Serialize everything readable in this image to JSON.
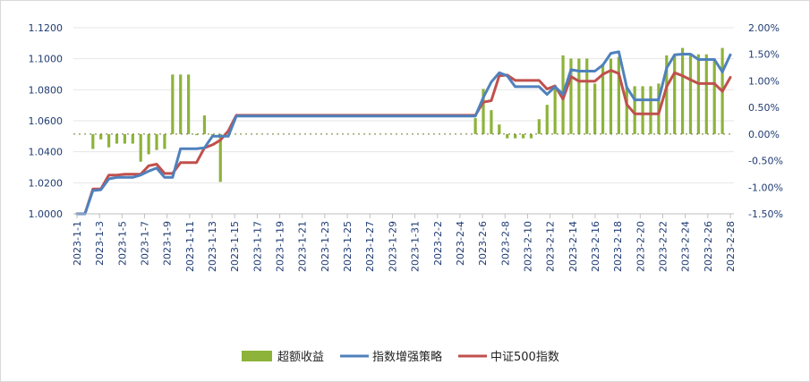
{
  "chart_data": {
    "type": "line",
    "colors": {
      "bar": "#8db33a",
      "strategy": "#4f81bd",
      "index": "#c0504d",
      "axis_text": "#1f3b73"
    },
    "y_left": {
      "min": 1.0,
      "max": 1.12,
      "ticks": [
        "1.0000",
        "1.0200",
        "1.0400",
        "1.0600",
        "1.0800",
        "1.1000",
        "1.1200"
      ]
    },
    "y_right": {
      "min": -1.5,
      "max": 2.0,
      "ticks": [
        "-1.50%",
        "-1.00%",
        "-0.50%",
        "0.00%",
        "0.50%",
        "1.00%",
        "1.50%",
        "2.00%"
      ]
    },
    "x_labels": [
      "2023-1-1",
      "2023-1-3",
      "2023-1-5",
      "2023-1-7",
      "2023-1-9",
      "2023-1-11",
      "2023-1-13",
      "2023-1-15",
      "2023-1-17",
      "2023-1-19",
      "2023-1-21",
      "2023-1-23",
      "2023-1-25",
      "2023-1-27",
      "2023-1-29",
      "2023-1-31",
      "2023-2-2",
      "2023-2-4",
      "2023-2-6",
      "2023-2-8",
      "2023-2-10",
      "2023-2-12",
      "2023-2-14",
      "2023-2-16",
      "2023-2-18",
      "2023-2-20",
      "2023-2-22",
      "2023-2-24",
      "2023-2-26",
      "2023-2-28"
    ],
    "legend": [
      "超额收益",
      "指数增强策略",
      "中证500指数"
    ],
    "series": [
      {
        "name": "超额收益",
        "kind": "bar",
        "axis": "right",
        "values": [
          0,
          0,
          -0.28,
          -0.1,
          -0.25,
          -0.18,
          -0.18,
          -0.18,
          -0.52,
          -0.38,
          -0.3,
          -0.28,
          1.12,
          1.12,
          1.12,
          -0.02,
          0.35,
          -0.02,
          -0.9,
          0,
          0,
          0,
          0,
          0,
          0,
          0,
          0,
          0,
          0,
          0,
          0,
          0,
          0,
          0,
          0,
          0,
          0,
          0,
          0,
          0,
          0,
          0,
          0,
          0,
          0,
          0,
          0,
          0,
          0,
          0,
          0.3,
          0.85,
          0.45,
          0.18,
          -0.08,
          -0.08,
          -0.08,
          -0.08,
          0.28,
          0.55,
          0.88,
          1.48,
          1.42,
          1.42,
          1.42,
          0.95,
          1.32,
          1.42,
          1.45,
          0.88,
          0.9,
          0.9,
          0.9,
          0.95,
          1.48,
          1.48,
          1.62,
          1.5,
          1.5,
          1.5,
          1.42,
          1.62
        ]
      },
      {
        "name": "指数增强策略",
        "kind": "line",
        "axis": "left",
        "values": [
          1.0,
          1.0,
          1.015,
          1.0155,
          1.0225,
          1.0235,
          1.0235,
          1.0235,
          1.025,
          1.0275,
          1.0295,
          1.0235,
          1.0235,
          1.042,
          1.042,
          1.042,
          1.0425,
          1.05,
          1.05,
          1.05,
          1.063,
          1.063,
          1.063,
          1.063,
          1.063,
          1.063,
          1.063,
          1.063,
          1.063,
          1.063,
          1.063,
          1.063,
          1.063,
          1.063,
          1.063,
          1.063,
          1.063,
          1.063,
          1.063,
          1.063,
          1.063,
          1.063,
          1.063,
          1.063,
          1.063,
          1.063,
          1.063,
          1.063,
          1.063,
          1.063,
          1.063,
          1.075,
          1.085,
          1.091,
          1.089,
          1.082,
          1.082,
          1.082,
          1.082,
          1.077,
          1.082,
          1.077,
          1.093,
          1.092,
          1.092,
          1.092,
          1.096,
          1.1035,
          1.1045,
          1.0815,
          1.0735,
          1.0735,
          1.0735,
          1.0735,
          1.094,
          1.1025,
          1.103,
          1.103,
          1.0995,
          1.0995,
          1.0995,
          1.0915,
          1.1025
        ]
      },
      {
        "name": "中证500指数",
        "kind": "line",
        "axis": "left",
        "values": [
          1.0,
          1.0,
          1.016,
          1.016,
          1.025,
          1.025,
          1.0255,
          1.0255,
          1.0255,
          1.031,
          1.032,
          1.026,
          1.026,
          1.033,
          1.033,
          1.033,
          1.0425,
          1.0445,
          1.0475,
          1.0535,
          1.0635,
          1.0635,
          1.0635,
          1.0635,
          1.0635,
          1.0635,
          1.0635,
          1.0635,
          1.0635,
          1.0635,
          1.0635,
          1.0635,
          1.0635,
          1.0635,
          1.0635,
          1.0635,
          1.0635,
          1.0635,
          1.0635,
          1.0635,
          1.0635,
          1.0635,
          1.0635,
          1.0635,
          1.0635,
          1.0635,
          1.0635,
          1.0635,
          1.0635,
          1.0635,
          1.0635,
          1.072,
          1.073,
          1.089,
          1.0895,
          1.086,
          1.086,
          1.086,
          1.086,
          1.0805,
          1.0825,
          1.074,
          1.0885,
          1.0855,
          1.0855,
          1.0855,
          1.09,
          1.0925,
          1.0905,
          1.0705,
          1.0645,
          1.0645,
          1.0645,
          1.0645,
          1.082,
          1.091,
          1.089,
          1.0865,
          1.084,
          1.084,
          1.084,
          1.079,
          1.088
        ]
      }
    ]
  }
}
